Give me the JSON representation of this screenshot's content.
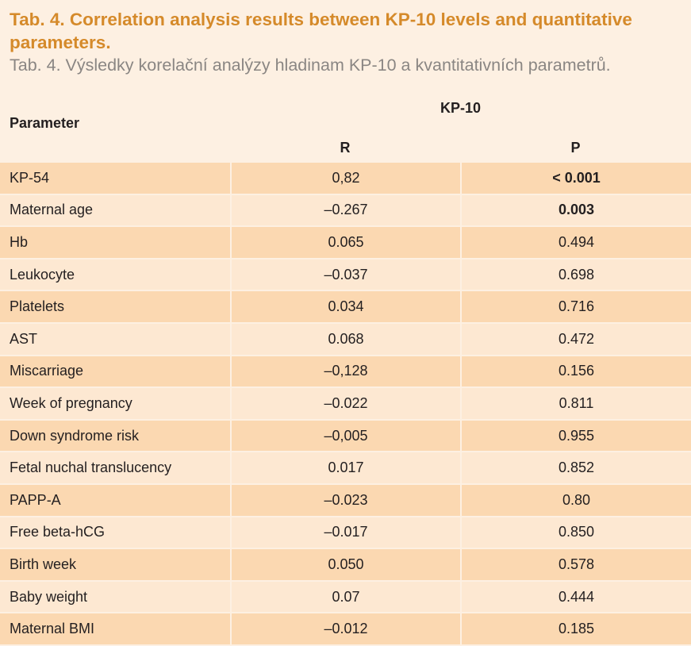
{
  "caption": {
    "title_en": "Tab. 4. Correlation analysis results between KP-10 levels and quantitative parameters.",
    "title_cz": "Tab. 4. Výsledky korelační analýzy hladinam KP-10 a kvantitativních parametrů."
  },
  "table": {
    "parameter_header": "Parameter",
    "group_header": "KP-10",
    "r_header": "R",
    "p_header": "P",
    "rows": [
      {
        "parameter": "KP-54",
        "r": "0,82",
        "p": "< 0.001",
        "p_bold": true
      },
      {
        "parameter": "Maternal age",
        "r": "–0.267",
        "p": "0.003",
        "p_bold": true
      },
      {
        "parameter": "Hb",
        "r": "0.065",
        "p": "0.494",
        "p_bold": false
      },
      {
        "parameter": "Leukocyte",
        "r": "–0.037",
        "p": "0.698",
        "p_bold": false
      },
      {
        "parameter": "Platelets",
        "r": "0.034",
        "p": "0.716",
        "p_bold": false
      },
      {
        "parameter": "AST",
        "r": "0.068",
        "p": "0.472",
        "p_bold": false
      },
      {
        "parameter": "Miscarriage",
        "r": "–0,128",
        "p": "0.156",
        "p_bold": false
      },
      {
        "parameter": "Week of pregnancy",
        "r": "–0.022",
        "p": "0.811",
        "p_bold": false
      },
      {
        "parameter": "Down syndrome risk",
        "r": "–0,005",
        "p": "0.955",
        "p_bold": false
      },
      {
        "parameter": "Fetal nuchal translucency",
        "r": "0.017",
        "p": "0.852",
        "p_bold": false
      },
      {
        "parameter": "PAPP-A",
        "r": "–0.023",
        "p": "0.80",
        "p_bold": false
      },
      {
        "parameter": "Free beta-hCG",
        "r": "–0.017",
        "p": "0.850",
        "p_bold": false
      },
      {
        "parameter": "Birth week",
        "r": "0.050",
        "p": "0.578",
        "p_bold": false
      },
      {
        "parameter": "Baby weight",
        "r": "0.07",
        "p": "0.444",
        "p_bold": false
      },
      {
        "parameter": "Maternal BMI",
        "r": "–0.012",
        "p": "0.185",
        "p_bold": false
      }
    ]
  },
  "colors": {
    "title": "#d58a2a",
    "subtitle": "#8a8683",
    "background": "#fdf0e2",
    "row_dark": "#fbd8b1",
    "row_light": "#fde8d2"
  }
}
